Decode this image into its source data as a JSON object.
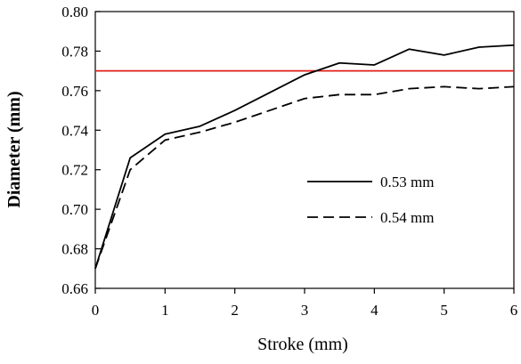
{
  "chart_data": {
    "type": "line",
    "xlabel": "Stroke (mm)",
    "ylabel": "Diameter (mm)",
    "xlim": [
      0,
      6
    ],
    "ylim": [
      0.66,
      0.8
    ],
    "xticks": [
      "0",
      "1",
      "2",
      "3",
      "4",
      "5",
      "6"
    ],
    "yticks": [
      "0.66",
      "0.68",
      "0.70",
      "0.72",
      "0.74",
      "0.76",
      "0.78",
      "0.80"
    ],
    "grid": false,
    "legend_position": "center-right",
    "series": [
      {
        "name": "0.53 mm",
        "style": "solid",
        "color": "#000000",
        "x": [
          0,
          0.5,
          1,
          1.5,
          2,
          2.5,
          3,
          3.5,
          4,
          4.5,
          5,
          5.5,
          6
        ],
        "y": [
          0.67,
          0.726,
          0.738,
          0.742,
          0.75,
          0.759,
          0.768,
          0.774,
          0.773,
          0.781,
          0.778,
          0.782,
          0.783
        ]
      },
      {
        "name": "0.54 mm",
        "style": "dashed",
        "color": "#000000",
        "x": [
          0,
          0.5,
          1,
          1.5,
          2,
          2.5,
          3,
          3.5,
          4,
          4.5,
          5,
          5.5,
          6
        ],
        "y": [
          0.67,
          0.72,
          0.735,
          0.739,
          0.744,
          0.75,
          0.756,
          0.758,
          0.758,
          0.761,
          0.762,
          0.761,
          0.762
        ]
      }
    ],
    "reference_line": {
      "y": 0.77,
      "color": "#e0201b"
    }
  }
}
